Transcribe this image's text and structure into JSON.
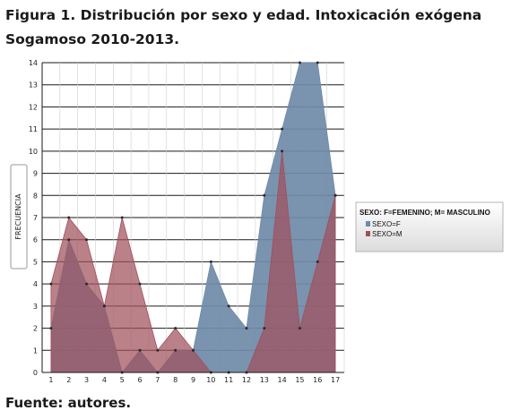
{
  "title_line1": "Figura 1. Distribución por sexo y edad. Intoxicación exógena",
  "title_line2": "Sogamoso 2010-2013.",
  "footer": "Fuente: autores.",
  "chart_data": {
    "type": "area",
    "ylabel": "FRECUENCIA",
    "xlabel": "",
    "x": [
      1,
      2,
      3,
      4,
      5,
      6,
      7,
      8,
      9,
      10,
      11,
      12,
      13,
      14,
      15,
      16,
      17
    ],
    "ylim": [
      0,
      14
    ],
    "yticks": [
      0,
      1,
      2,
      3,
      4,
      5,
      6,
      7,
      8,
      9,
      10,
      11,
      12,
      13,
      14
    ],
    "grid": true,
    "legend_title": "SEXO: F=FEMENINO; M= MASCULINO",
    "legend_position": "right",
    "series": [
      {
        "name": "SEXO=F",
        "color": "#6f8aa8",
        "values": [
          2,
          6,
          4,
          3,
          0,
          1,
          0,
          1,
          1,
          5,
          3,
          2,
          8,
          11,
          14,
          14,
          8
        ]
      },
      {
        "name": "SEXO=M",
        "color": "#a0505c",
        "values": [
          4,
          7,
          6,
          3,
          7,
          4,
          1,
          2,
          1,
          0,
          0,
          0,
          2,
          10,
          2,
          5,
          8
        ]
      }
    ]
  }
}
